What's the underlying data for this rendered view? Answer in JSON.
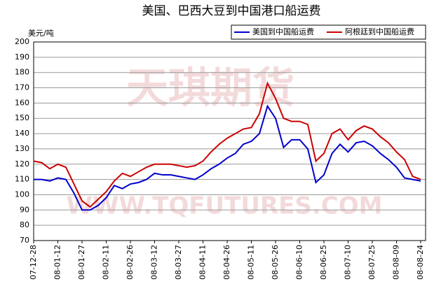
{
  "chart_data": {
    "type": "line",
    "title": "美国、巴西大豆到中国港口船运费",
    "y_label": "美元/吨",
    "watermarks": [
      "天琪期货",
      "WWW.TQFUTURES.COM"
    ],
    "categories": [
      "07-12-28",
      null,
      null,
      "08-01-12",
      null,
      null,
      "08-01-27",
      null,
      null,
      "08-02-11",
      null,
      null,
      "08-02-26",
      null,
      null,
      "08-03-12",
      null,
      null,
      "08-03-27",
      null,
      null,
      "08-04-11",
      null,
      null,
      "08-04-26",
      null,
      null,
      "08-05-11",
      null,
      null,
      "08-05-26",
      null,
      null,
      "08-06-10",
      null,
      null,
      "08-06-25",
      null,
      null,
      "08-07-10",
      null,
      null,
      "08-07-25",
      null,
      null,
      "08-08-09",
      null,
      null,
      "08-08-24"
    ],
    "series": [
      {
        "name": "美国到中国船运费",
        "color": "#0000cc",
        "values": [
          110,
          110,
          109,
          111,
          110,
          101,
          90,
          90,
          93,
          98,
          106,
          104,
          107,
          108,
          110,
          114,
          113,
          113,
          112,
          111,
          110,
          113,
          117,
          120,
          124,
          127,
          133,
          135,
          140,
          158,
          150,
          131,
          136,
          136,
          130,
          108,
          113,
          127,
          133,
          128,
          134,
          135,
          132,
          127,
          123,
          118,
          111,
          110,
          109
        ]
      },
      {
        "name": "阿根廷到中国船运费",
        "color": "#cc0000",
        "values": [
          122,
          121,
          117,
          120,
          118,
          107,
          96,
          92,
          97,
          102,
          109,
          114,
          112,
          115,
          118,
          120,
          120,
          120,
          119,
          118,
          119,
          122,
          128,
          133,
          137,
          140,
          143,
          144,
          153,
          173,
          163,
          150,
          148,
          148,
          146,
          122,
          127,
          140,
          143,
          136,
          142,
          145,
          143,
          138,
          134,
          128,
          123,
          112,
          110
        ]
      }
    ],
    "ylim": [
      70,
      200
    ],
    "yticks": [
      70,
      80,
      90,
      100,
      110,
      120,
      130,
      140,
      150,
      160,
      170,
      180,
      190,
      200
    ],
    "grid": true
  }
}
